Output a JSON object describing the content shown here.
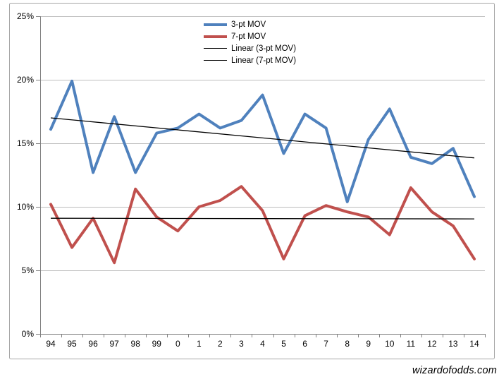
{
  "watermark": "wizardofodds.com",
  "legend": {
    "position": "top-center",
    "items": [
      "3-pt MOV",
      "7-pt MOV",
      "Linear (3-pt MOV)",
      "Linear (7-pt MOV)"
    ]
  },
  "colors": {
    "series_3pt": "#4F81BD",
    "series_7pt": "#C0504D",
    "trendline": "#000000",
    "gridline": "#BDBDBD",
    "axis": "#808080",
    "chart_border": "#A6A6A6",
    "background": "#FFFFFF",
    "text": "#000000"
  },
  "y_axis": {
    "tick_labels_top_to_bottom": [
      "25%",
      "20%",
      "15%",
      "10%",
      "5%",
      "0%"
    ],
    "tick_values": [
      25,
      20,
      15,
      10,
      5,
      0
    ],
    "min": 0,
    "max": 25,
    "step": 5
  },
  "chart_data": {
    "type": "line",
    "title": "",
    "xlabel": "",
    "ylabel": "",
    "grid": true,
    "legend_position": "top-center",
    "ylim": [
      0,
      25
    ],
    "ytick_step": 5,
    "ytick_labels": [
      "0%",
      "5%",
      "10%",
      "15%",
      "20%",
      "25%"
    ],
    "categories": [
      "94",
      "95",
      "96",
      "97",
      "98",
      "99",
      "0",
      "1",
      "2",
      "3",
      "4",
      "5",
      "6",
      "7",
      "8",
      "9",
      "10",
      "11",
      "12",
      "13",
      "14"
    ],
    "series": [
      {
        "name": "3-pt MOV",
        "kind": "data",
        "color": "#4F81BD",
        "stroke_width": 4,
        "values": [
          16.1,
          19.9,
          12.7,
          17.1,
          12.7,
          15.8,
          16.2,
          17.3,
          16.2,
          16.8,
          18.8,
          14.2,
          17.3,
          16.2,
          10.4,
          15.3,
          17.7,
          13.9,
          13.4,
          14.6,
          10.8
        ]
      },
      {
        "name": "7-pt MOV",
        "kind": "data",
        "color": "#C0504D",
        "stroke_width": 4,
        "values": [
          10.2,
          6.8,
          9.1,
          5.6,
          11.4,
          9.2,
          8.1,
          10.0,
          10.5,
          11.6,
          9.7,
          5.9,
          9.3,
          10.1,
          9.6,
          9.2,
          7.8,
          11.5,
          9.6,
          8.5,
          5.9
        ]
      },
      {
        "name": "Linear (3-pt MOV)",
        "kind": "trend",
        "color": "#000000",
        "stroke_width": 1.3,
        "start_value": 17.0,
        "end_value": 13.85
      },
      {
        "name": "Linear (7-pt MOV)",
        "kind": "trend",
        "color": "#000000",
        "stroke_width": 1.3,
        "start_value": 9.1,
        "end_value": 9.05
      }
    ]
  }
}
